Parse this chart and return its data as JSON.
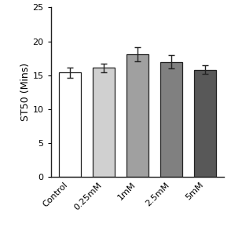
{
  "categories": [
    "Control",
    "0.25mM",
    "1mM",
    "2.5mM",
    "5mM"
  ],
  "values": [
    15.4,
    16.1,
    18.1,
    17.0,
    15.8
  ],
  "errors": [
    0.75,
    0.65,
    1.05,
    0.95,
    0.65
  ],
  "bar_colors": [
    "#ffffff",
    "#d0d0d0",
    "#a0a0a0",
    "#808080",
    "#585858"
  ],
  "bar_edgecolor": "#222222",
  "ylabel": "ST50 (Mins)",
  "ylim": [
    0,
    25
  ],
  "yticks": [
    0,
    5,
    10,
    15,
    20,
    25
  ],
  "background_color": "#ffffff",
  "bar_width": 0.65,
  "capsize": 3,
  "error_color": "#222222",
  "error_linewidth": 1.0,
  "tick_labelsize": 8,
  "ylabel_fontsize": 9
}
